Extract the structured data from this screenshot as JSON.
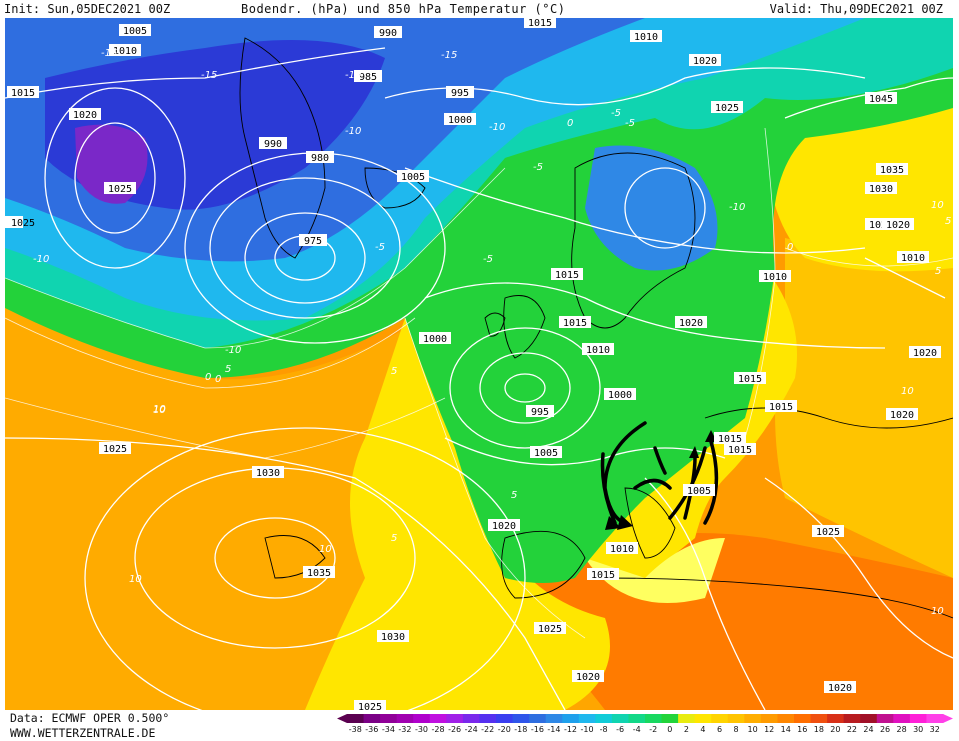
{
  "header": {
    "init": "Init: Sun,05DEC2021 00Z",
    "title": "Bodendr. (hPa) und 850 hPa Temperatur (°C)",
    "valid": "Valid: Thu,09DEC2021 00Z"
  },
  "footer": {
    "data_source": "Data: ECMWF OPER 0.500°",
    "website": "WWW.WETTERZENTRALE.DE"
  },
  "map": {
    "pressure_labels": [
      "1005",
      "1010",
      "1015",
      "1020",
      "1025",
      "990",
      "985",
      "980",
      "990",
      "995",
      "1000",
      "975",
      "1005",
      "1015",
      "1010",
      "1020",
      "1025",
      "1045",
      "1035",
      "1030",
      "1020",
      "1010",
      "1010",
      "1015",
      "1015",
      "1000",
      "995",
      "1005",
      "1015",
      "1020",
      "1010",
      "1015",
      "1025",
      "1030",
      "1035",
      "1030",
      "1025",
      "1020",
      "1025",
      "1020",
      "1010",
      "1015",
      "1000",
      "1005",
      "1015",
      "1020",
      "1025",
      "1020",
      "1020",
      "1025",
      "1015",
      "1020"
    ],
    "temperature_labels": [
      "-15",
      "-15",
      "-10",
      "-5",
      "-10",
      "-5",
      "0",
      "-5",
      "-10",
      "-5",
      "-10",
      "0",
      "5",
      "10",
      "-10",
      "-15",
      "-10",
      "0",
      "-5",
      "10",
      "5",
      "10",
      "5",
      "10",
      "0",
      "5",
      "10",
      "5",
      "10",
      "10",
      "5"
    ],
    "colors": {
      "frigid_purple": "#7a28c8",
      "deep_blue": "#2b3ad6",
      "blue": "#2f6ee0",
      "cyan": "#1fb4e6",
      "teal": "#10d0b0",
      "green": "#23d23a",
      "yellow": "#ffe600",
      "orange_light": "#ffc400",
      "orange": "#ff9b00",
      "orange_dark": "#ff7b00",
      "red": "#d83018"
    }
  },
  "colorbar": {
    "ticks": [
      "-38",
      "-36",
      "-34",
      "-32",
      "-30",
      "-28",
      "-26",
      "-24",
      "-22",
      "-20",
      "-18",
      "-16",
      "-14",
      "-12",
      "-10",
      "-8",
      "-6",
      "-4",
      "-2",
      "0",
      "2",
      "4",
      "6",
      "8",
      "10",
      "12",
      "14",
      "16",
      "18",
      "20",
      "22",
      "24",
      "26",
      "28",
      "30",
      "32"
    ],
    "colors": [
      "#5a0050",
      "#7a0085",
      "#900098",
      "#a000b0",
      "#b000cc",
      "#c010e0",
      "#a020e8",
      "#7a28ec",
      "#5530f0",
      "#3a3ef0",
      "#2f55ea",
      "#2f6ee0",
      "#2f88e6",
      "#1fa0ec",
      "#1fb8ee",
      "#10ccd8",
      "#10d4b0",
      "#12d888",
      "#18d860",
      "#22d43a",
      "#e8ec10",
      "#ffe600",
      "#ffd400",
      "#ffc400",
      "#ffae00",
      "#ff9b00",
      "#ff8600",
      "#ff6e00",
      "#f05010",
      "#d83018",
      "#b81c20",
      "#a01028",
      "#c01090",
      "#e010c0",
      "#ff20d8",
      "#ff40e8"
    ]
  }
}
